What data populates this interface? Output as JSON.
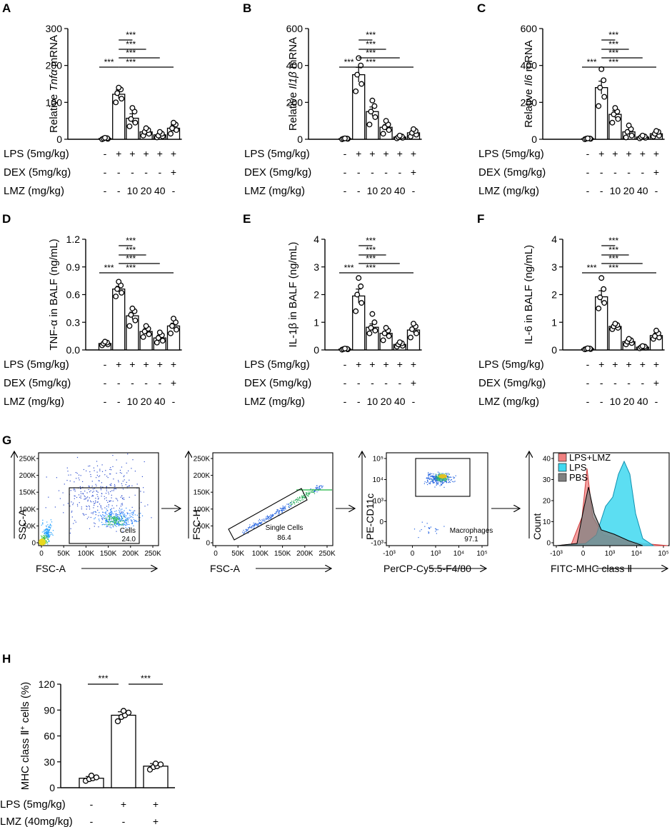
{
  "panel_letters": [
    "A",
    "B",
    "C",
    "D",
    "E",
    "F",
    "G",
    "H"
  ],
  "sig": "***",
  "row_labels": {
    "lps": "LPS (5mg/kg)",
    "dex": "DEX (5mg/kg)",
    "lmz": "LMZ (mg/kg)",
    "lps_cols": [
      "-",
      "+",
      "+",
      "+",
      "+",
      "+"
    ],
    "dex_cols": [
      "-",
      "-",
      "-",
      "-",
      "-",
      "+"
    ],
    "lmz_cols": [
      "-",
      "-",
      "10",
      "20",
      "40",
      "-"
    ]
  },
  "chart_data": [
    {
      "panel": "A",
      "type": "bar",
      "ylabel_pre": "Relative ",
      "ylabel_gene": "Tnfα",
      "ylabel_post": " mRNA",
      "ylim": [
        0,
        300
      ],
      "ticks": [
        "0",
        "100",
        "200",
        "300"
      ],
      "tick_values": [
        0,
        100,
        200,
        300
      ],
      "groups": [
        "PBS",
        "LPS",
        "LPS+LMZ10",
        "LPS+LMZ20",
        "LPS+LMZ40",
        "LPS+DEX"
      ],
      "means": [
        2,
        122,
        57,
        20,
        12,
        30
      ],
      "sems": [
        1,
        12,
        12,
        4,
        4,
        9
      ],
      "points": [
        [
          0,
          1,
          2,
          3,
          4
        ],
        [
          100,
          110,
          125,
          135,
          140
        ],
        [
          35,
          45,
          55,
          75,
          85
        ],
        [
          10,
          15,
          20,
          25,
          30
        ],
        [
          5,
          8,
          10,
          15,
          20
        ],
        [
          15,
          25,
          30,
          40,
          45
        ]
      ]
    },
    {
      "panel": "B",
      "type": "bar",
      "ylabel_pre": "Relative ",
      "ylabel_gene": "Il1β",
      "ylabel_post": " mRNA",
      "ylim": [
        0,
        600
      ],
      "ticks": [
        "0",
        "200",
        "400",
        "600"
      ],
      "tick_values": [
        0,
        200,
        400,
        600
      ],
      "groups": [
        "PBS",
        "LPS",
        "LPS+LMZ10",
        "LPS+LMZ20",
        "LPS+LMZ40",
        "LPS+DEX"
      ],
      "means": [
        3,
        350,
        150,
        65,
        12,
        35
      ],
      "sems": [
        2,
        40,
        25,
        15,
        5,
        10
      ],
      "points": [
        [
          0,
          2,
          3,
          4,
          5
        ],
        [
          260,
          300,
          350,
          400,
          440
        ],
        [
          80,
          120,
          150,
          180,
          210
        ],
        [
          30,
          50,
          65,
          80,
          100
        ],
        [
          5,
          8,
          12,
          15,
          20
        ],
        [
          15,
          25,
          35,
          45,
          55
        ]
      ]
    },
    {
      "panel": "C",
      "type": "bar",
      "ylabel_pre": "Relative ",
      "ylabel_gene": "Il6",
      "ylabel_post": " mRNA",
      "ylim": [
        0,
        600
      ],
      "ticks": [
        "0",
        "200",
        "400",
        "600"
      ],
      "tick_values": [
        0,
        200,
        400,
        600
      ],
      "groups": [
        "PBS",
        "LPS",
        "LPS+LMZ10",
        "LPS+LMZ20",
        "LPS+LMZ40",
        "LPS+DEX"
      ],
      "means": [
        3,
        280,
        135,
        40,
        12,
        30
      ],
      "sems": [
        2,
        35,
        20,
        12,
        4,
        8
      ],
      "points": [
        [
          0,
          2,
          3,
          4,
          5
        ],
        [
          180,
          230,
          280,
          320,
          380
        ],
        [
          90,
          110,
          135,
          150,
          170
        ],
        [
          10,
          20,
          40,
          55,
          75
        ],
        [
          5,
          8,
          12,
          15,
          20
        ],
        [
          15,
          20,
          30,
          40,
          45
        ]
      ]
    },
    {
      "panel": "D",
      "type": "bar",
      "ylabel": "TNF-α in BALF (ng/mL)",
      "ylim": [
        0,
        1.2
      ],
      "ticks": [
        "0.0",
        "0.3",
        "0.6",
        "0.9",
        "1.2"
      ],
      "tick_values": [
        0,
        0.3,
        0.6,
        0.9,
        1.2
      ],
      "groups": [
        "PBS",
        "LPS",
        "LPS+LMZ10",
        "LPS+LMZ20",
        "LPS+LMZ40",
        "LPS+DEX"
      ],
      "means": [
        0.07,
        0.66,
        0.37,
        0.2,
        0.13,
        0.26
      ],
      "sems": [
        0.01,
        0.03,
        0.04,
        0.03,
        0.03,
        0.03
      ],
      "points": [
        [
          0.05,
          0.06,
          0.07,
          0.08,
          0.09
        ],
        [
          0.58,
          0.62,
          0.66,
          0.7,
          0.74
        ],
        [
          0.26,
          0.32,
          0.38,
          0.42,
          0.45
        ],
        [
          0.14,
          0.17,
          0.2,
          0.23,
          0.26
        ],
        [
          0.08,
          0.1,
          0.13,
          0.16,
          0.19
        ],
        [
          0.18,
          0.22,
          0.26,
          0.3,
          0.34
        ]
      ]
    },
    {
      "panel": "E",
      "type": "bar",
      "ylabel": "IL-1β in BALF (ng/mL)",
      "ylim": [
        0,
        4
      ],
      "ticks": [
        "0",
        "1",
        "2",
        "3",
        "4"
      ],
      "tick_values": [
        0,
        1,
        2,
        3,
        4
      ],
      "groups": [
        "PBS",
        "LPS",
        "LPS+LMZ10",
        "LPS+LMZ20",
        "LPS+LMZ40",
        "LPS+DEX"
      ],
      "means": [
        0.03,
        1.95,
        0.82,
        0.6,
        0.2,
        0.72
      ],
      "sems": [
        0.01,
        0.25,
        0.12,
        0.08,
        0.03,
        0.1
      ],
      "points": [
        [
          0.01,
          0.02,
          0.03,
          0.04,
          0.05
        ],
        [
          1.4,
          1.7,
          2.0,
          2.3,
          2.6
        ],
        [
          0.6,
          0.7,
          0.8,
          1.0,
          1.3
        ],
        [
          0.35,
          0.5,
          0.6,
          0.7,
          0.8
        ],
        [
          0.12,
          0.15,
          0.2,
          0.24,
          0.28
        ],
        [
          0.45,
          0.6,
          0.75,
          0.85,
          0.95
        ]
      ]
    },
    {
      "panel": "F",
      "type": "bar",
      "ylabel": "IL-6 in BALF (ng/mL)",
      "ylim": [
        0,
        4
      ],
      "ticks": [
        "0",
        "1",
        "2",
        "3",
        "4"
      ],
      "tick_values": [
        0,
        1,
        2,
        3,
        4
      ],
      "groups": [
        "PBS",
        "LPS",
        "LPS+LMZ10",
        "LPS+LMZ20",
        "LPS+LMZ40",
        "LPS+DEX"
      ],
      "means": [
        0.04,
        1.92,
        0.85,
        0.3,
        0.1,
        0.52
      ],
      "sems": [
        0.01,
        0.22,
        0.05,
        0.05,
        0.02,
        0.08
      ],
      "points": [
        [
          0.02,
          0.03,
          0.04,
          0.05,
          0.06
        ],
        [
          1.5,
          1.7,
          1.9,
          2.2,
          2.6
        ],
        [
          0.75,
          0.8,
          0.85,
          0.9,
          0.95
        ],
        [
          0.2,
          0.25,
          0.3,
          0.35,
          0.4
        ],
        [
          0.06,
          0.08,
          0.1,
          0.12,
          0.14
        ],
        [
          0.4,
          0.45,
          0.5,
          0.6,
          0.7
        ]
      ]
    },
    {
      "panel": "H",
      "type": "bar",
      "ylabel_pre": "MHC class ",
      "ylabel_class": "Ⅱ",
      "ylabel_sup": "+",
      "ylabel_post": " cells (%)",
      "ylim": [
        0,
        120
      ],
      "ticks": [
        "0",
        "30",
        "60",
        "90",
        "120"
      ],
      "tick_values": [
        0,
        30,
        60,
        90,
        120
      ],
      "groups": [
        "PBS",
        "LPS",
        "LPS+LMZ"
      ],
      "means": [
        11,
        84,
        25
      ],
      "sems": [
        2,
        4,
        3
      ],
      "points": [
        [
          8,
          10,
          11,
          12,
          14
        ],
        [
          77,
          82,
          84,
          87,
          89
        ],
        [
          21,
          24,
          25,
          27,
          28
        ]
      ],
      "row_labels": {
        "lps": "LPS (5mg/kg)",
        "lmz": "LMZ (40mg/kg)",
        "lps_cols": [
          "-",
          "+",
          "+"
        ],
        "lmz_cols": [
          "-",
          "-",
          "+"
        ]
      }
    }
  ],
  "flow": {
    "plot1": {
      "ylabel": "SSC-A",
      "xlabel": "FSC-A",
      "yticks": [
        "250K",
        "200K",
        "150K",
        "100K",
        "50K",
        "0"
      ],
      "xticks": [
        "0",
        "50K",
        "100K",
        "150K",
        "200K",
        "250K"
      ],
      "gate_name": "Cells",
      "gate_value": "24.0"
    },
    "plot2": {
      "ylabel": "FSC-H",
      "xlabel": "FSC-A",
      "yticks": [
        "250K",
        "200K",
        "150K",
        "100K",
        "50K",
        "0"
      ],
      "xticks": [
        "0",
        "50K",
        "100K",
        "150K",
        "200K",
        "250K"
      ],
      "gate_name": "Single Cells",
      "gate_value": "86.4"
    },
    "plot3": {
      "ylabel": "PE-CD11c",
      "xlabel": "PerCP-Cy5.5-F4/80",
      "yticks": [
        "10⁵",
        "10⁴",
        "10³",
        "0",
        "-10³"
      ],
      "xticks": [
        "-10³",
        "0",
        "10³",
        "10⁴",
        "10⁵"
      ],
      "gate_name": "Macrophages",
      "gate_value": "97.1"
    },
    "plot4": {
      "ylabel": "Count",
      "xlabel": "FITC-MHC class Ⅱ",
      "yticks": [
        "40",
        "30",
        "20",
        "10",
        "0"
      ],
      "xticks": [
        "-10³",
        "0",
        "10³",
        "10⁴",
        "10⁵"
      ],
      "legend": [
        {
          "label": "LPS+LMZ",
          "color": "#f08080"
        },
        {
          "label": "LPS",
          "color": "#40d8f0"
        },
        {
          "label": "PBS",
          "color": "#808080"
        }
      ]
    }
  }
}
